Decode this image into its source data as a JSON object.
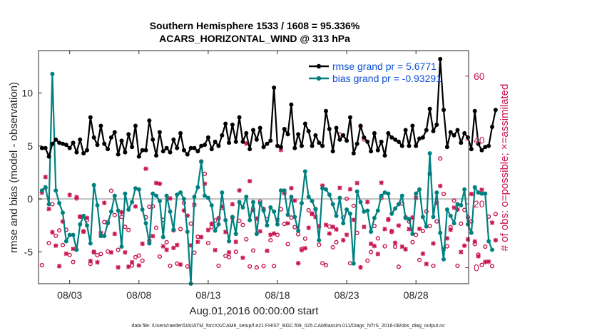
{
  "chart_data": {
    "type": "line",
    "title": "Southern Hemisphere 1533 / 1608 = 95.336%",
    "subtitle": "ACARS_HORIZONTAL_WIND @ 313 hPa",
    "xlabel": "Aug.01,2016 00:00:00 start",
    "ylabel_left": "rmse and bias (model - observation)",
    "ylabel_right": "# of obs: o=possible; ×=assimilated",
    "footer": "data file: /Users/raeder/DAI/ATM_forcXX/CAM6_setup/f.e21.FHIST_BGC.f09_025.CAM6assim.011/Diags_NTrS_2016-08/obs_diag_output.nc",
    "x_ticks": [
      "08/03",
      "08/08",
      "08/13",
      "08/18",
      "08/23",
      "08/28"
    ],
    "y_left_ticks": [
      "-5",
      "0",
      "5",
      "10"
    ],
    "y_right_ticks": [
      "0",
      "20",
      "40",
      "60"
    ],
    "ylim_left": [
      -8,
      14
    ],
    "ylim_right": [
      -5,
      68
    ],
    "xlim": [
      0.75,
      31.8
    ],
    "x_tick_days": [
      3,
      8,
      13,
      18,
      23,
      28
    ],
    "legend": {
      "rmse": "rmse grand pr = 5.6771",
      "bias": "bias grand pr = -0.93291"
    },
    "colors": {
      "rmse": "#000000",
      "bias": "#008080",
      "obs": "#c8154f",
      "zero_line": "#bfbfbf"
    },
    "series": [
      {
        "name": "rmse",
        "axis": "left",
        "values": [
          4.8,
          4.8,
          4.0,
          5.2,
          5.6,
          5.3,
          5.2,
          5.1,
          4.8,
          5.3,
          4.4,
          5.6,
          4.3,
          4.6,
          7.7,
          5.8,
          5.1,
          6.9,
          5.2,
          4.7,
          5.8,
          6.3,
          4.2,
          5.5,
          4.4,
          6.1,
          4.9,
          6.9,
          4.0,
          4.6,
          4.6,
          7.4,
          5.6,
          4.1,
          6.3,
          4.5,
          4.8,
          4.4,
          5.6,
          4.8,
          6.2,
          4.6,
          4.2,
          4.8,
          4.8,
          4.5,
          5.0,
          5.1,
          5.8,
          4.7,
          5.4,
          5.0,
          6.0,
          7.1,
          5.3,
          7.0,
          5.4,
          7.7,
          5.4,
          6.2,
          4.7,
          6.5,
          5.6,
          6.7,
          4.9,
          5.2,
          5.5,
          10.5,
          5.0,
          4.9,
          6.6,
          6.1,
          8.9,
          4.8,
          6.1,
          5.0,
          7.1,
          6.4,
          5.0,
          6.0,
          5.3,
          5.0,
          8.3,
          6.6,
          4.5,
          6.7,
          5.6,
          6.0,
          5.5,
          7.7,
          4.3,
          5.2,
          6.9,
          5.8,
          5.4,
          4.5,
          6.2,
          4.6,
          5.4,
          4.1,
          6.2,
          5.8,
          5.6,
          5.4,
          5.0,
          6.5,
          5.0,
          6.9,
          5.0,
          5.7,
          5.8,
          6.5,
          8.5,
          6.4,
          7.0,
          13.2,
          8.4,
          4.9,
          6.3,
          6.0,
          6.5,
          5.3,
          6.2,
          5.8,
          4.7,
          8.3,
          5.2,
          4.6,
          4.9,
          5.0,
          6.8,
          8.4
        ],
        "x_start_day": 1.0,
        "x_step_days": 0.25
      },
      {
        "name": "bias",
        "axis": "left",
        "values": [
          0.8,
          1.1,
          -0.5,
          11.8,
          0.8,
          -0.4,
          -1.3,
          -4.0,
          -3.4,
          -3.4,
          -4.8,
          -2.4,
          -1.6,
          -2.5,
          -4.2,
          1.3,
          -0.6,
          -3.5,
          -3.5,
          -2.3,
          -1.2,
          0.3,
          -1.1,
          -4.5,
          0.5,
          -1.0,
          -0.3,
          1.0,
          0.9,
          -1.0,
          -2.3,
          -4.2,
          0.5,
          0.3,
          -0.2,
          -3.6,
          0.3,
          -1.2,
          -2.9,
          0.4,
          0.6,
          0.0,
          -3.1,
          -8.0,
          0.2,
          1.1,
          3.5,
          0.3,
          0.1,
          -0.6,
          -3.0,
          -2.4,
          0.6,
          -2.0,
          -4.0,
          -1.7,
          -3.3,
          -0.3,
          -0.8,
          0.2,
          -2.0,
          -0.3,
          -3.3,
          -0.4,
          -1.1,
          -2.5,
          -0.8,
          -1.2,
          -2.4,
          0.8,
          0.8,
          -1.5,
          0.2,
          -1.7,
          -3.0,
          -0.4,
          2.6,
          0.2,
          -0.2,
          -1.0,
          -3.9,
          1.0,
          0.9,
          0.4,
          -0.5,
          -1.6,
          0.1,
          -2.3,
          -1.0,
          -1.4,
          -6.1,
          0.7,
          -0.3,
          -1.2,
          -1.1,
          -3.1,
          -1.8,
          -1.1,
          0.3,
          0.6,
          0.5,
          -1.4,
          -0.9,
          -0.5,
          0.3,
          -1.8,
          -1.9,
          -3.3,
          0.5,
          0.9,
          -1.7,
          -2.6,
          4.3,
          -1.7,
          0.6,
          -3.2,
          -5.7,
          -1.0,
          -1.6,
          -2.3,
          -0.5,
          -0.6,
          0.9,
          -2.4,
          -3.2,
          1.1,
          0.6,
          0.5,
          0.5,
          -4.0,
          -4.8
        ],
        "x_start_day": 1.0,
        "x_step_days": 0.25
      },
      {
        "name": "obs_possible",
        "axis": "right",
        "marker": "o",
        "values": [
          0.8,
          25.0,
          7.7,
          19.9,
          10.0,
          11.7,
          7.1,
          11.9,
          4.0,
          1.8,
          21.7,
          16.0,
          11.4,
          14.9,
          1.2,
          4.8,
          3.9,
          4.3,
          14.3,
          5.1,
          24.1,
          16.5,
          5.6,
          15.9,
          12.8,
          11.8,
          0.7,
          3.3,
          3.8,
          2.2,
          15.8,
          19.1,
          19.2,
          12.5,
          3.5,
          15.0,
          8.0,
          0.6,
          11.7,
          1.3,
          12.1,
          20.3,
          0.4,
          13.8,
          4.7,
          9.7,
          33.3,
          29.4,
          7.7,
          12.7,
          14.8,
          0.6,
          18.7,
          3.7,
          3.3,
          15.7,
          5.0,
          14.7,
          13.4,
          8.9,
          0.4,
          5.4,
          0.1,
          20.7,
          0.5,
          15.2,
          8.6,
          0.5,
          10.3,
          18.3,
          13.7,
          7.4,
          15.7,
          12.7,
          10.5,
          5.9,
          9.1,
          18.0,
          17.0,
          18.4,
          7.2,
          1.4,
          0.8,
          12.9,
          6.4,
          8.0,
          41.7,
          15.7,
          21.6,
          1.4,
          19.4,
          10.9,
          44.3,
          40.2,
          2.2,
          4.9,
          13.1,
          9.2,
          21.8,
          6.7,
          15.0,
          11.2,
          6.6,
          0.3,
          20.1,
          15.8,
          14.5,
          8.0,
          10.3,
          2.4,
          11.5,
          17.6,
          13.1,
          0.6,
          14.5,
          34.2,
          23.1,
          6.7,
          12.7,
          21.0,
          0.6,
          13.8,
          18.1,
          15.8,
          14.5,
          7.4,
          4.1,
          0.9,
          6.6,
          16.0,
          0.5,
          16.8
        ],
        "x_start_day": 1.0,
        "x_step_days": 0.25
      },
      {
        "name": "obs_assimilated",
        "axis": "right",
        "marker": "x",
        "values": [
          23.5,
          28.4,
          18.4,
          11.1,
          6.9,
          0.5,
          14.5,
          4.4,
          22.8,
          5.9,
          22.1,
          16.0,
          11.3,
          15.6,
          2.1,
          5.0,
          1.7,
          10.9,
          20.3,
          14.2,
          4.8,
          10.6,
          0.1,
          17.4,
          4.8,
          0.3,
          1.7,
          19.2,
          0.7,
          7.5,
          31.0,
          8.4,
          9.9,
          26.5,
          26.3,
          6.7,
          5.6,
          21.7,
          6.2,
          7.1,
          1.0,
          17.9,
          16.3,
          7.0,
          19.7,
          8.1,
          9.6,
          26.3,
          11.8,
          13.8,
          5.5,
          15.5,
          19.1,
          11.2,
          4.8,
          19.9,
          8.1,
          24.2,
          3.1,
          38.9,
          27.1,
          18.0,
          15.4,
          11.4,
          18.4,
          5.3,
          10.3,
          10.7,
          15.0,
          36.9,
          23.3,
          13.9,
          24.9,
          21.0,
          1.4,
          5.5,
          6.1,
          12.5,
          16.8,
          15.9,
          13.0,
          25.7,
          13.4,
          10.7,
          12.8,
          12.0,
          25.0,
          8.6,
          10.3,
          24.6,
          15.0,
          26.5,
          0.1,
          12.8,
          20.6,
          7.5,
          6.8,
          4.3,
          26.6,
          12.1,
          15.2,
          11.5,
          7.8,
          13.2,
          6.6,
          5.8,
          12.1,
          15.7,
          21.9,
          12.2,
          4.4,
          1.2,
          29.4,
          7.6,
          20.3,
          25.6,
          5.9,
          9.2,
          11.9,
          18.8,
          18.2,
          4.9,
          6.9,
          8.9,
          23.1,
          8.2,
          3.6,
          24.4,
          1.8,
          1.9,
          14.1,
          8.6
        ],
        "x_start_day": 1.0,
        "x_step_days": 0.25
      }
    ]
  }
}
